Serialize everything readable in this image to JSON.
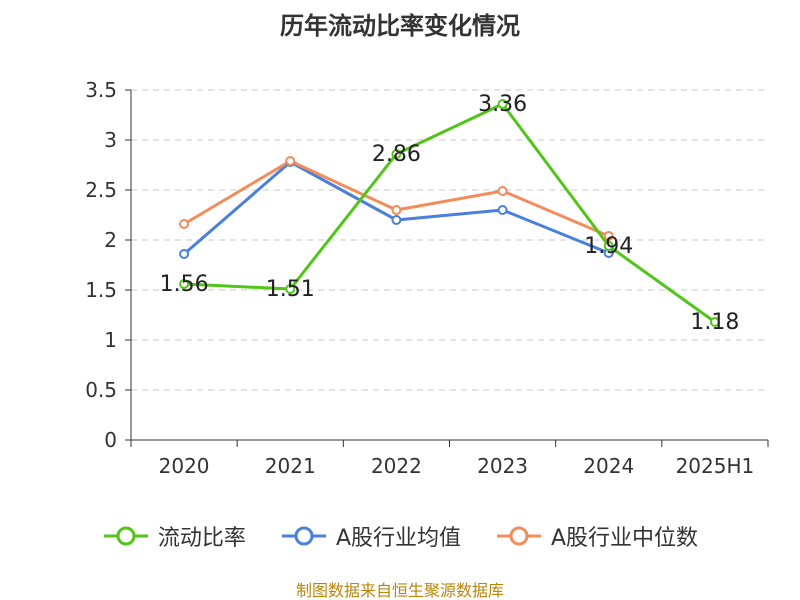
{
  "chart_data": {
    "type": "line",
    "title": "历年流动比率变化情况",
    "categories": [
      "2020",
      "2021",
      "2022",
      "2023",
      "2024",
      "2025H1"
    ],
    "ylim": [
      0,
      3.5
    ],
    "yticks": [
      "0",
      "0.5",
      "1",
      "1.5",
      "2",
      "2.5",
      "3",
      "3.5"
    ],
    "grid": true,
    "legend_position": "bottom",
    "series": [
      {
        "name": "流动比率",
        "color": "#52c41a",
        "values": [
          1.56,
          1.51,
          2.86,
          3.36,
          1.94,
          1.18
        ],
        "labels": [
          "1.56",
          "1.51",
          "2.86",
          "3.36",
          "1.94",
          "1.18"
        ]
      },
      {
        "name": "A股行业均值",
        "color": "#4a7fdc",
        "values": [
          1.86,
          2.78,
          2.2,
          2.3,
          1.87,
          null
        ]
      },
      {
        "name": "A股行业中位数",
        "color": "#f28c5a",
        "values": [
          2.16,
          2.79,
          2.3,
          2.49,
          2.04,
          null
        ]
      }
    ]
  },
  "footer": {
    "source": "制图数据来自恒生聚源数据库"
  }
}
